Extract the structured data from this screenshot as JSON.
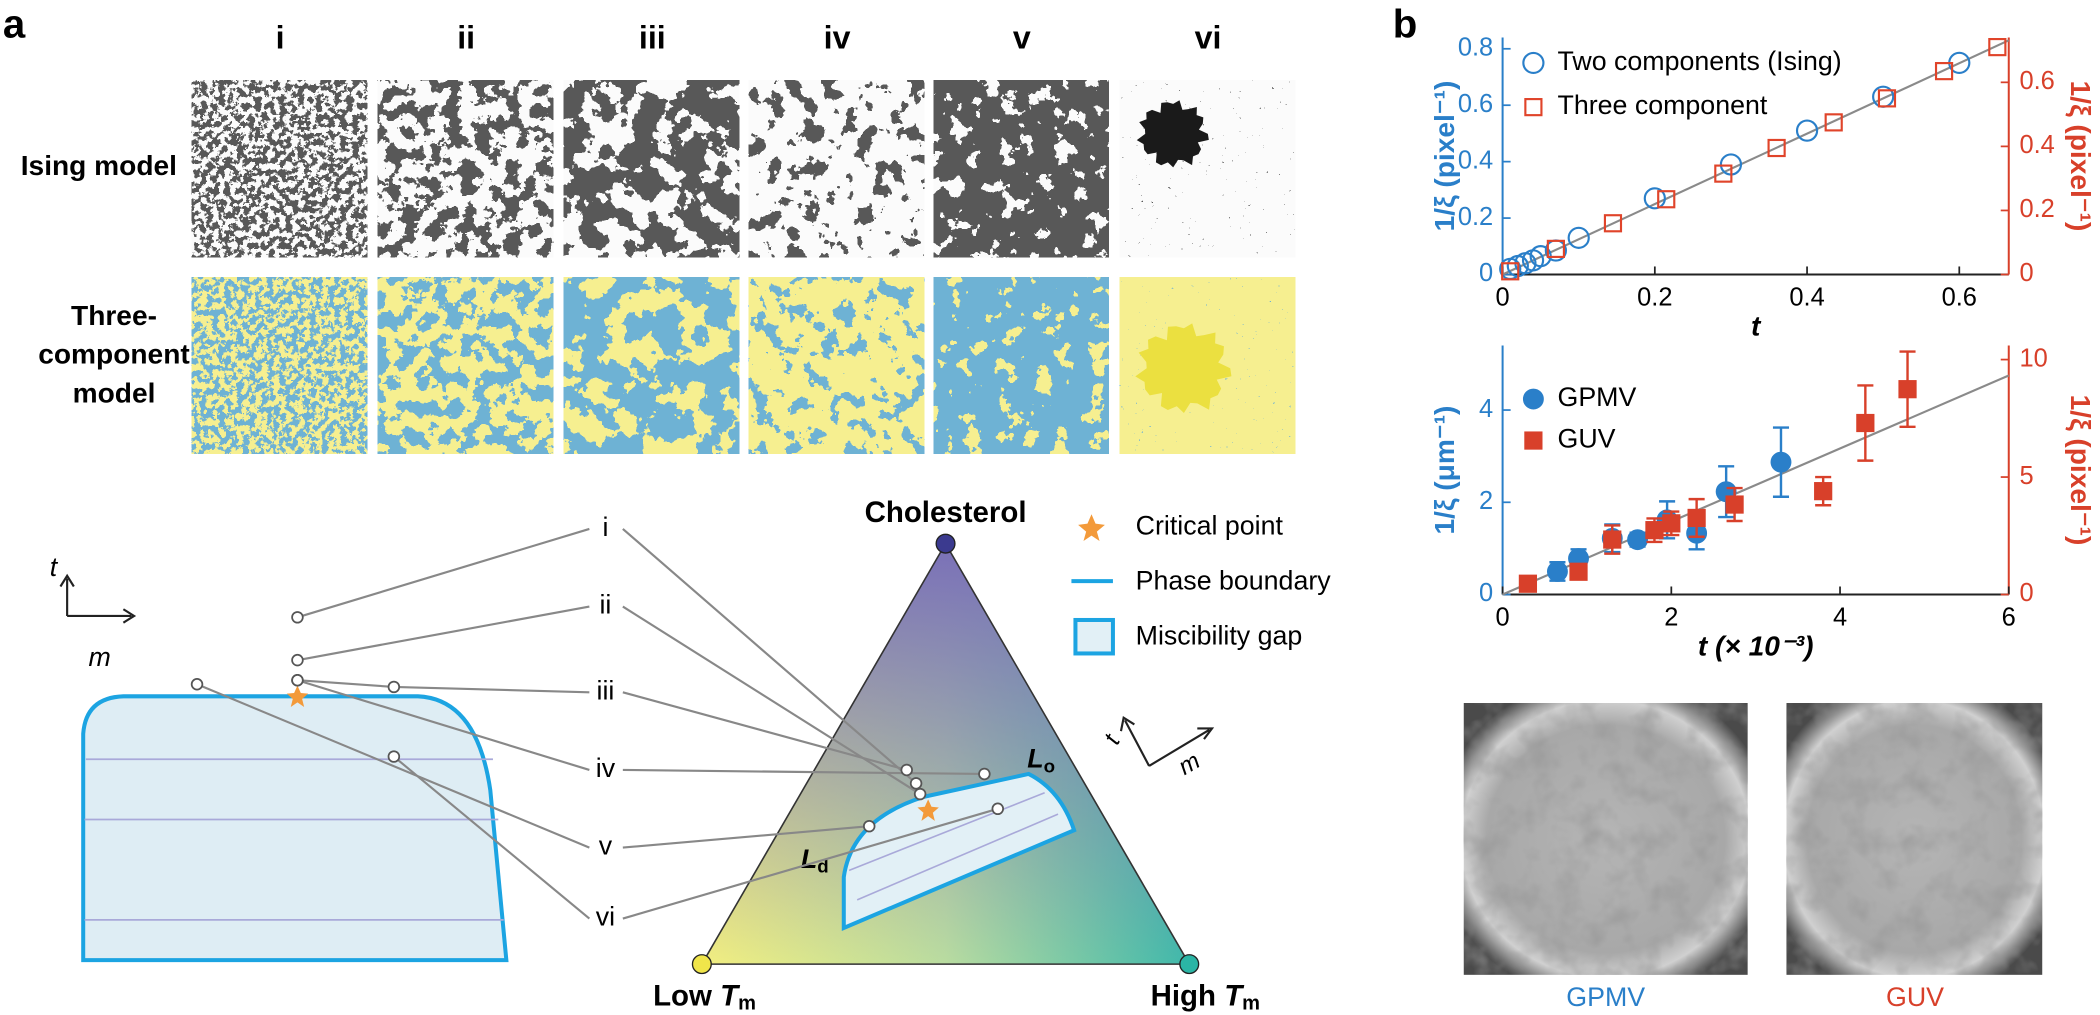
{
  "panel_a": {
    "label": "a",
    "columns": [
      "i",
      "ii",
      "iii",
      "iv",
      "v",
      "vi"
    ],
    "row_labels": [
      [
        "Ising model"
      ],
      [
        "Three-",
        "component",
        "model"
      ]
    ],
    "axis_t": "t",
    "axis_m": "m",
    "state_labels": [
      "i",
      "ii",
      "iii",
      "iv",
      "v",
      "vi"
    ],
    "triangle": {
      "top": "Cholesterol",
      "left": [
        "Low ",
        "T",
        "m"
      ],
      "right": [
        "High ",
        "T",
        "m"
      ],
      "lo": [
        "L",
        "o"
      ],
      "ld": [
        "L",
        "d"
      ]
    },
    "legend": [
      "Critical point",
      "Phase boundary",
      "Miscibility gap"
    ],
    "small_axis_t": "t",
    "small_axis_m": "m"
  },
  "panel_b": {
    "label": "b",
    "images": [
      "GPMV",
      "GUV"
    ]
  },
  "chart_data": [
    {
      "type": "scatter",
      "x_label": "t",
      "y_label": "1/ξ (pixel⁻¹)",
      "y2_label": "1/ξ (pixel⁻¹)",
      "xlim": [
        0,
        0.665
      ],
      "xticks": [
        0,
        0.2,
        0.4,
        0.6
      ],
      "ylim": [
        0,
        0.84
      ],
      "yticks": [
        0,
        0.2,
        0.4,
        0.6,
        0.8
      ],
      "y2lim": [
        0,
        0.74
      ],
      "y2ticks": [
        0,
        0.2,
        0.4,
        0.6
      ],
      "legend": "upper left",
      "series": [
        {
          "name": "Two components (Ising)",
          "color": "#2a7fc9",
          "marker": "circle",
          "filled": false,
          "x": [
            0.01,
            0.02,
            0.03,
            0.04,
            0.05,
            0.07,
            0.1,
            0.2,
            0.3,
            0.4,
            0.5,
            0.6
          ],
          "values": [
            0.02,
            0.03,
            0.04,
            0.05,
            0.065,
            0.085,
            0.13,
            0.27,
            0.39,
            0.51,
            0.63,
            0.75
          ]
        },
        {
          "name": "Three component",
          "color": "#e0442a",
          "marker": "square",
          "filled": false,
          "axis": "y2",
          "x": [
            0.01,
            0.07,
            0.145,
            0.215,
            0.29,
            0.36,
            0.435,
            0.505,
            0.58,
            0.65
          ],
          "values": [
            0.01,
            0.08,
            0.16,
            0.235,
            0.315,
            0.395,
            0.475,
            0.55,
            0.635,
            0.71
          ]
        }
      ],
      "fit": {
        "color": "#8a8a8a",
        "x": [
          0,
          0.665
        ],
        "values": [
          0,
          0.83
        ]
      }
    },
    {
      "type": "errorbar",
      "x_label": "t (× 10⁻³)",
      "y_label": "1/ξ (μm⁻¹)",
      "y2_label": "1/ξ (pixel⁻¹)",
      "xlim": [
        0,
        6
      ],
      "xticks": [
        0,
        2,
        4,
        6
      ],
      "ylim": [
        0,
        5.4
      ],
      "yticks": [
        0,
        2,
        4
      ],
      "y2lim": [
        0,
        10.6
      ],
      "y2ticks": [
        0,
        5,
        10
      ],
      "legend": "upper left",
      "series": [
        {
          "name": "GPMV",
          "color": "#2a7fc9",
          "marker": "circle",
          "filled": true,
          "x": [
            0.65,
            0.9,
            1.3,
            1.6,
            1.95,
            2.3,
            2.65,
            3.3
          ],
          "values": [
            0.5,
            0.78,
            1.22,
            1.19,
            1.62,
            1.33,
            2.23,
            2.87
          ],
          "errors": [
            0.2,
            0.2,
            0.3,
            0.15,
            0.4,
            0.35,
            0.55,
            0.75
          ]
        },
        {
          "name": "GUV",
          "color": "#d8402a",
          "marker": "square",
          "filled": true,
          "axis": "y2",
          "x": [
            0.3,
            0.9,
            1.3,
            1.8,
            2.0,
            2.3,
            2.75,
            3.8,
            4.3,
            4.8
          ],
          "values": [
            0.46,
            0.97,
            2.34,
            2.74,
            3.03,
            3.26,
            3.83,
            4.4,
            7.3,
            8.74
          ],
          "errors": [
            0.2,
            0.3,
            0.6,
            0.5,
            0.5,
            0.8,
            0.7,
            0.6,
            1.6,
            1.6
          ]
        }
      ],
      "fit": {
        "color": "#8a8a8a",
        "x": [
          0,
          6
        ],
        "values": [
          0,
          4.75
        ]
      }
    }
  ]
}
